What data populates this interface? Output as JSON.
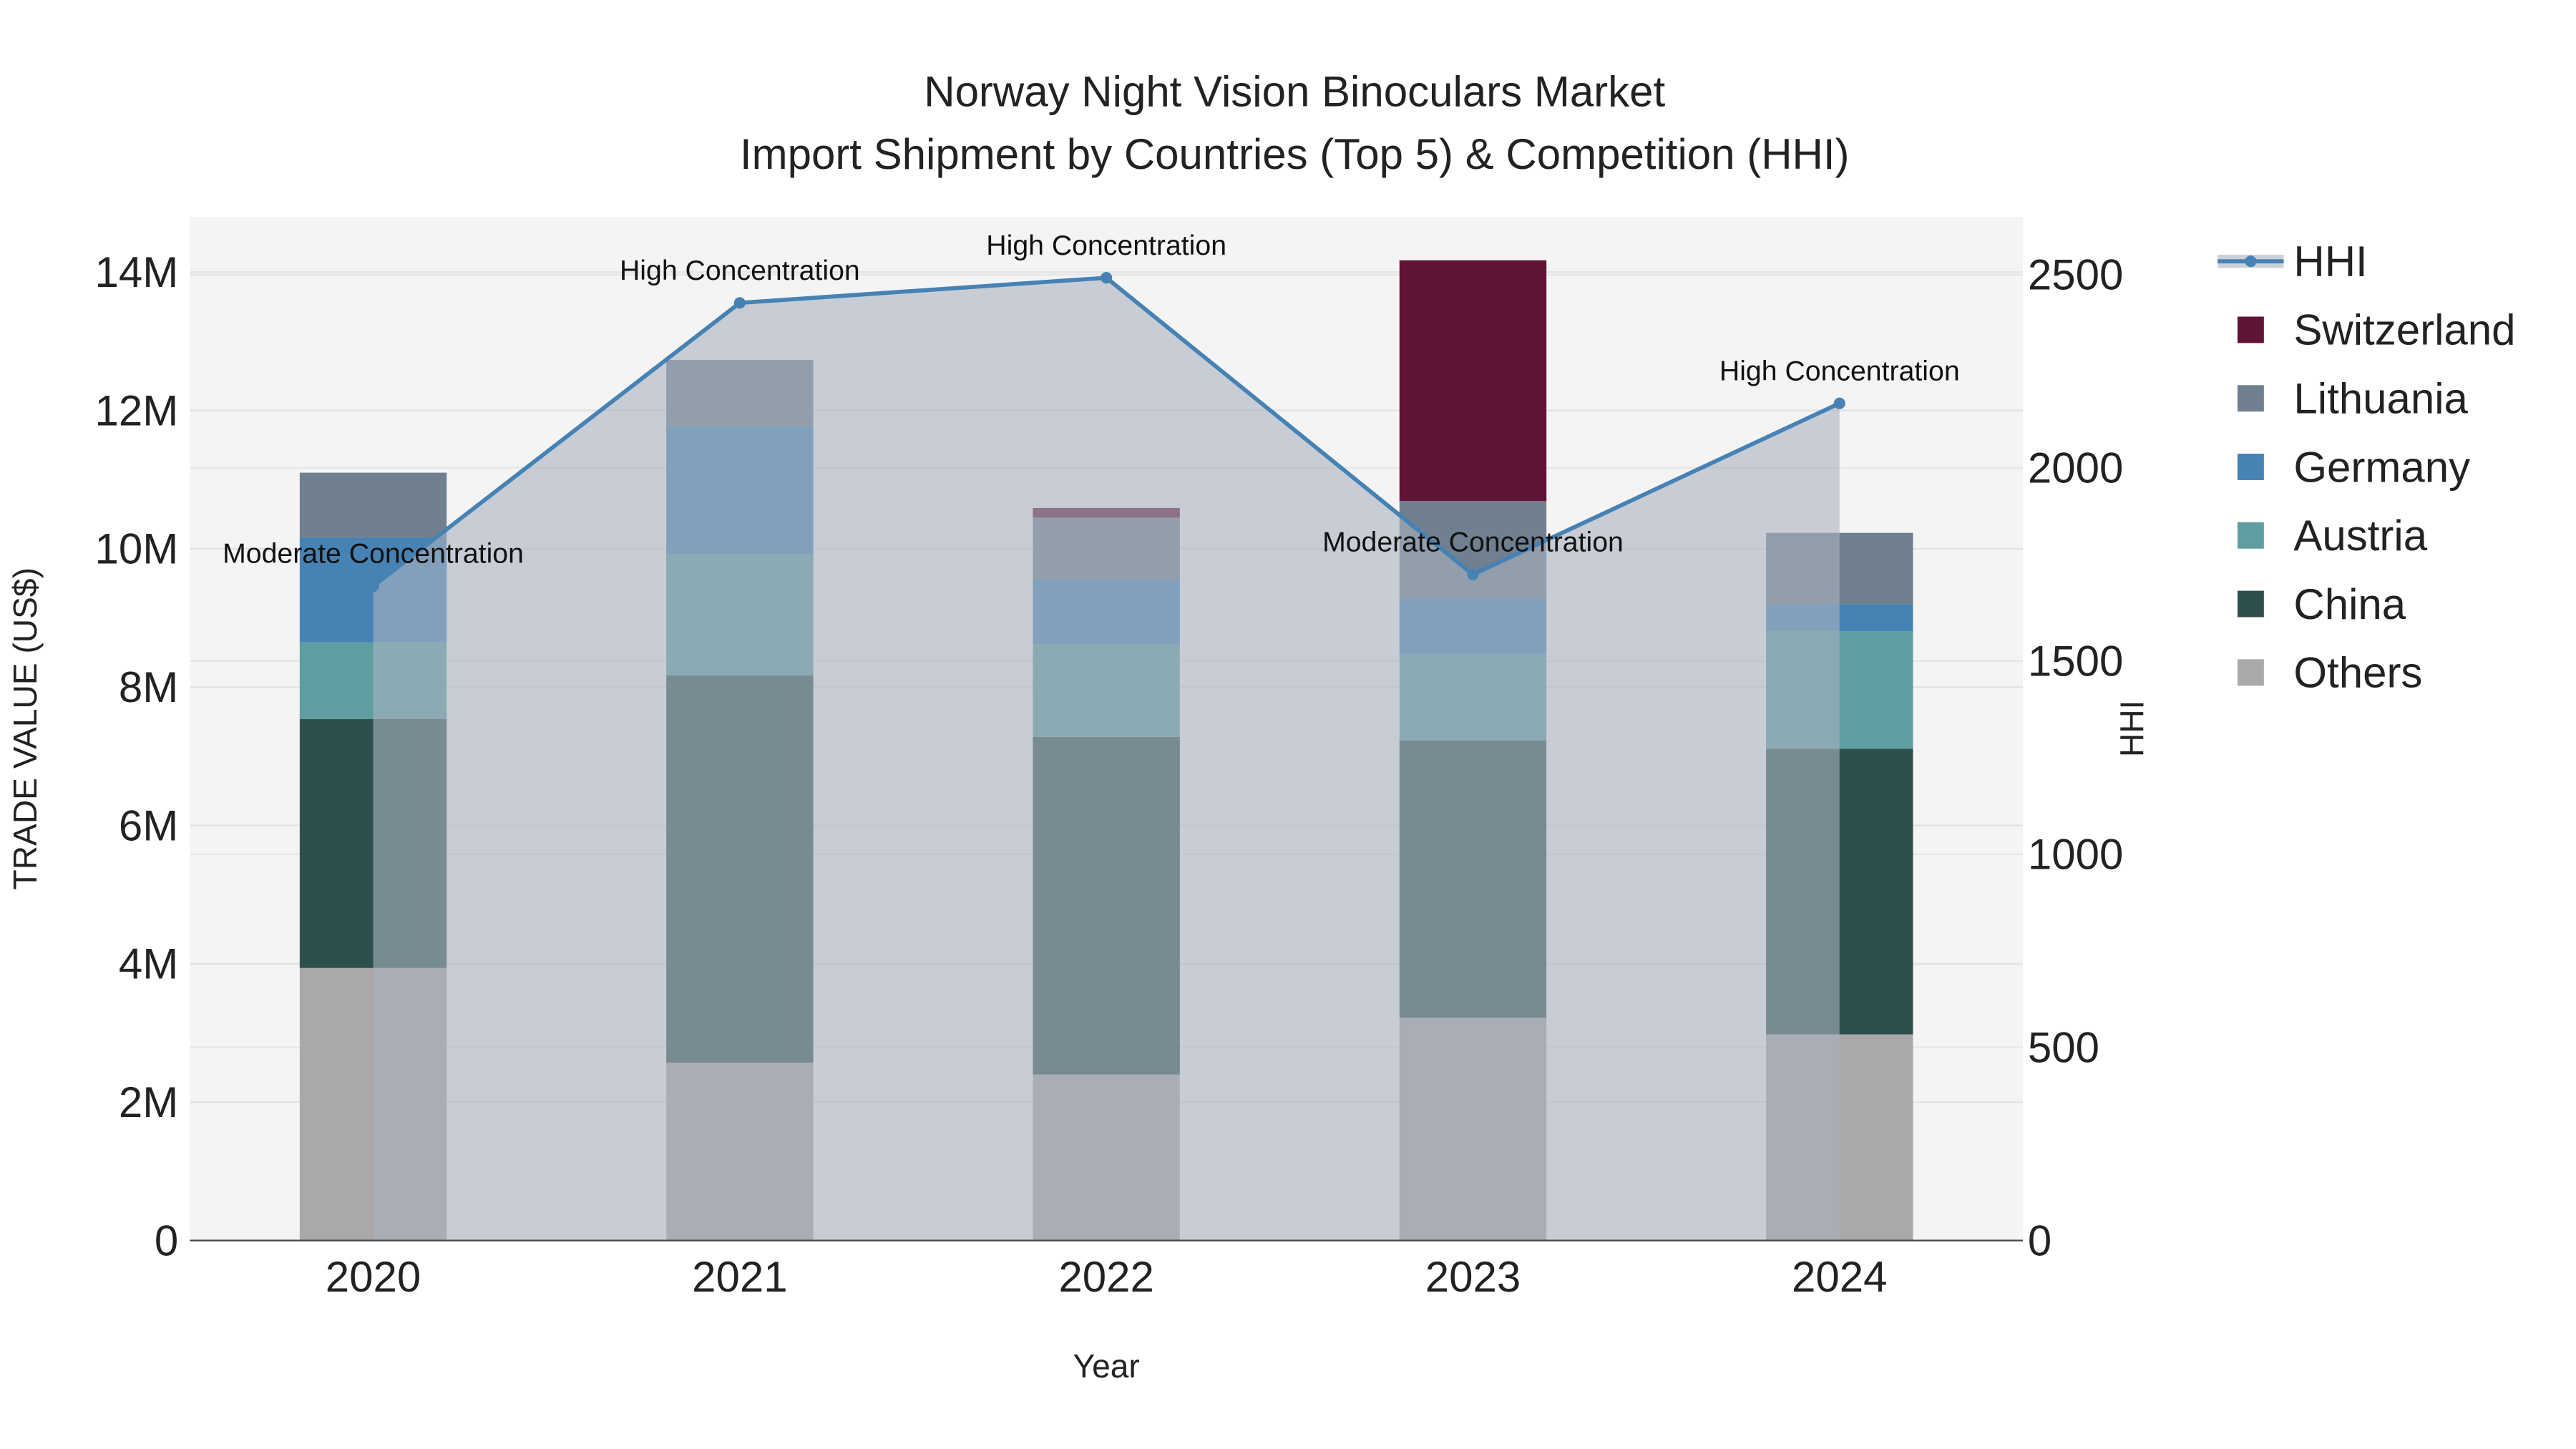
{
  "chart_data": {
    "type": "bar",
    "title": "Norway Night Vision Binoculars Market",
    "subtitle": "Import Shipment by Countries (Top 5) & Competition (HHI)",
    "xlabel": "Year",
    "ylabel": "TRADE VALUE (US$)",
    "y2label": "HHI",
    "categories": [
      "2020",
      "2021",
      "2022",
      "2023",
      "2024"
    ],
    "ylim": [
      0,
      14800000
    ],
    "y2lim": [
      0,
      2650
    ],
    "yticks": [
      0,
      2000000,
      4000000,
      6000000,
      8000000,
      10000000,
      12000000,
      14000000
    ],
    "ytick_labels": [
      "0",
      "2M",
      "4M",
      "6M",
      "8M",
      "10M",
      "12M",
      "14M"
    ],
    "y2ticks": [
      0,
      500,
      1000,
      1500,
      2000,
      2500
    ],
    "y2tick_labels": [
      "0",
      "500",
      "1000",
      "1500",
      "2000",
      "2500"
    ],
    "series": [
      {
        "name": "Others",
        "color": "#a9a9a9",
        "values": [
          3940000,
          2570000,
          2400000,
          3220000,
          2980000
        ]
      },
      {
        "name": "China",
        "color": "#2f4f4f",
        "values": [
          3600000,
          5600000,
          4880000,
          4010000,
          4130000
        ]
      },
      {
        "name": "Austria",
        "color": "#5f9ea0",
        "values": [
          1110000,
          1750000,
          1340000,
          1250000,
          1700000
        ]
      },
      {
        "name": "Germany",
        "color": "#4682b4",
        "values": [
          1510000,
          1850000,
          940000,
          790000,
          390000
        ]
      },
      {
        "name": "Lithuania",
        "color": "#708090",
        "values": [
          940000,
          960000,
          890000,
          1420000,
          1030000
        ]
      },
      {
        "name": "Switzerland",
        "color": "#5f1435",
        "values": [
          0,
          0,
          140000,
          3480000,
          0
        ]
      }
    ],
    "hhi": {
      "name": "HHI",
      "color": "#4682b4",
      "values": [
        1694,
        2427,
        2492,
        1724,
        2167
      ],
      "annotations": [
        "Moderate Concentration",
        "High Concentration",
        "High Concentration",
        "Moderate Concentration",
        "High Concentration"
      ]
    },
    "legend": {
      "placement": "right",
      "entries": [
        "HHI",
        "Switzerland",
        "Lithuania",
        "Germany",
        "Austria",
        "China",
        "Others"
      ]
    }
  }
}
